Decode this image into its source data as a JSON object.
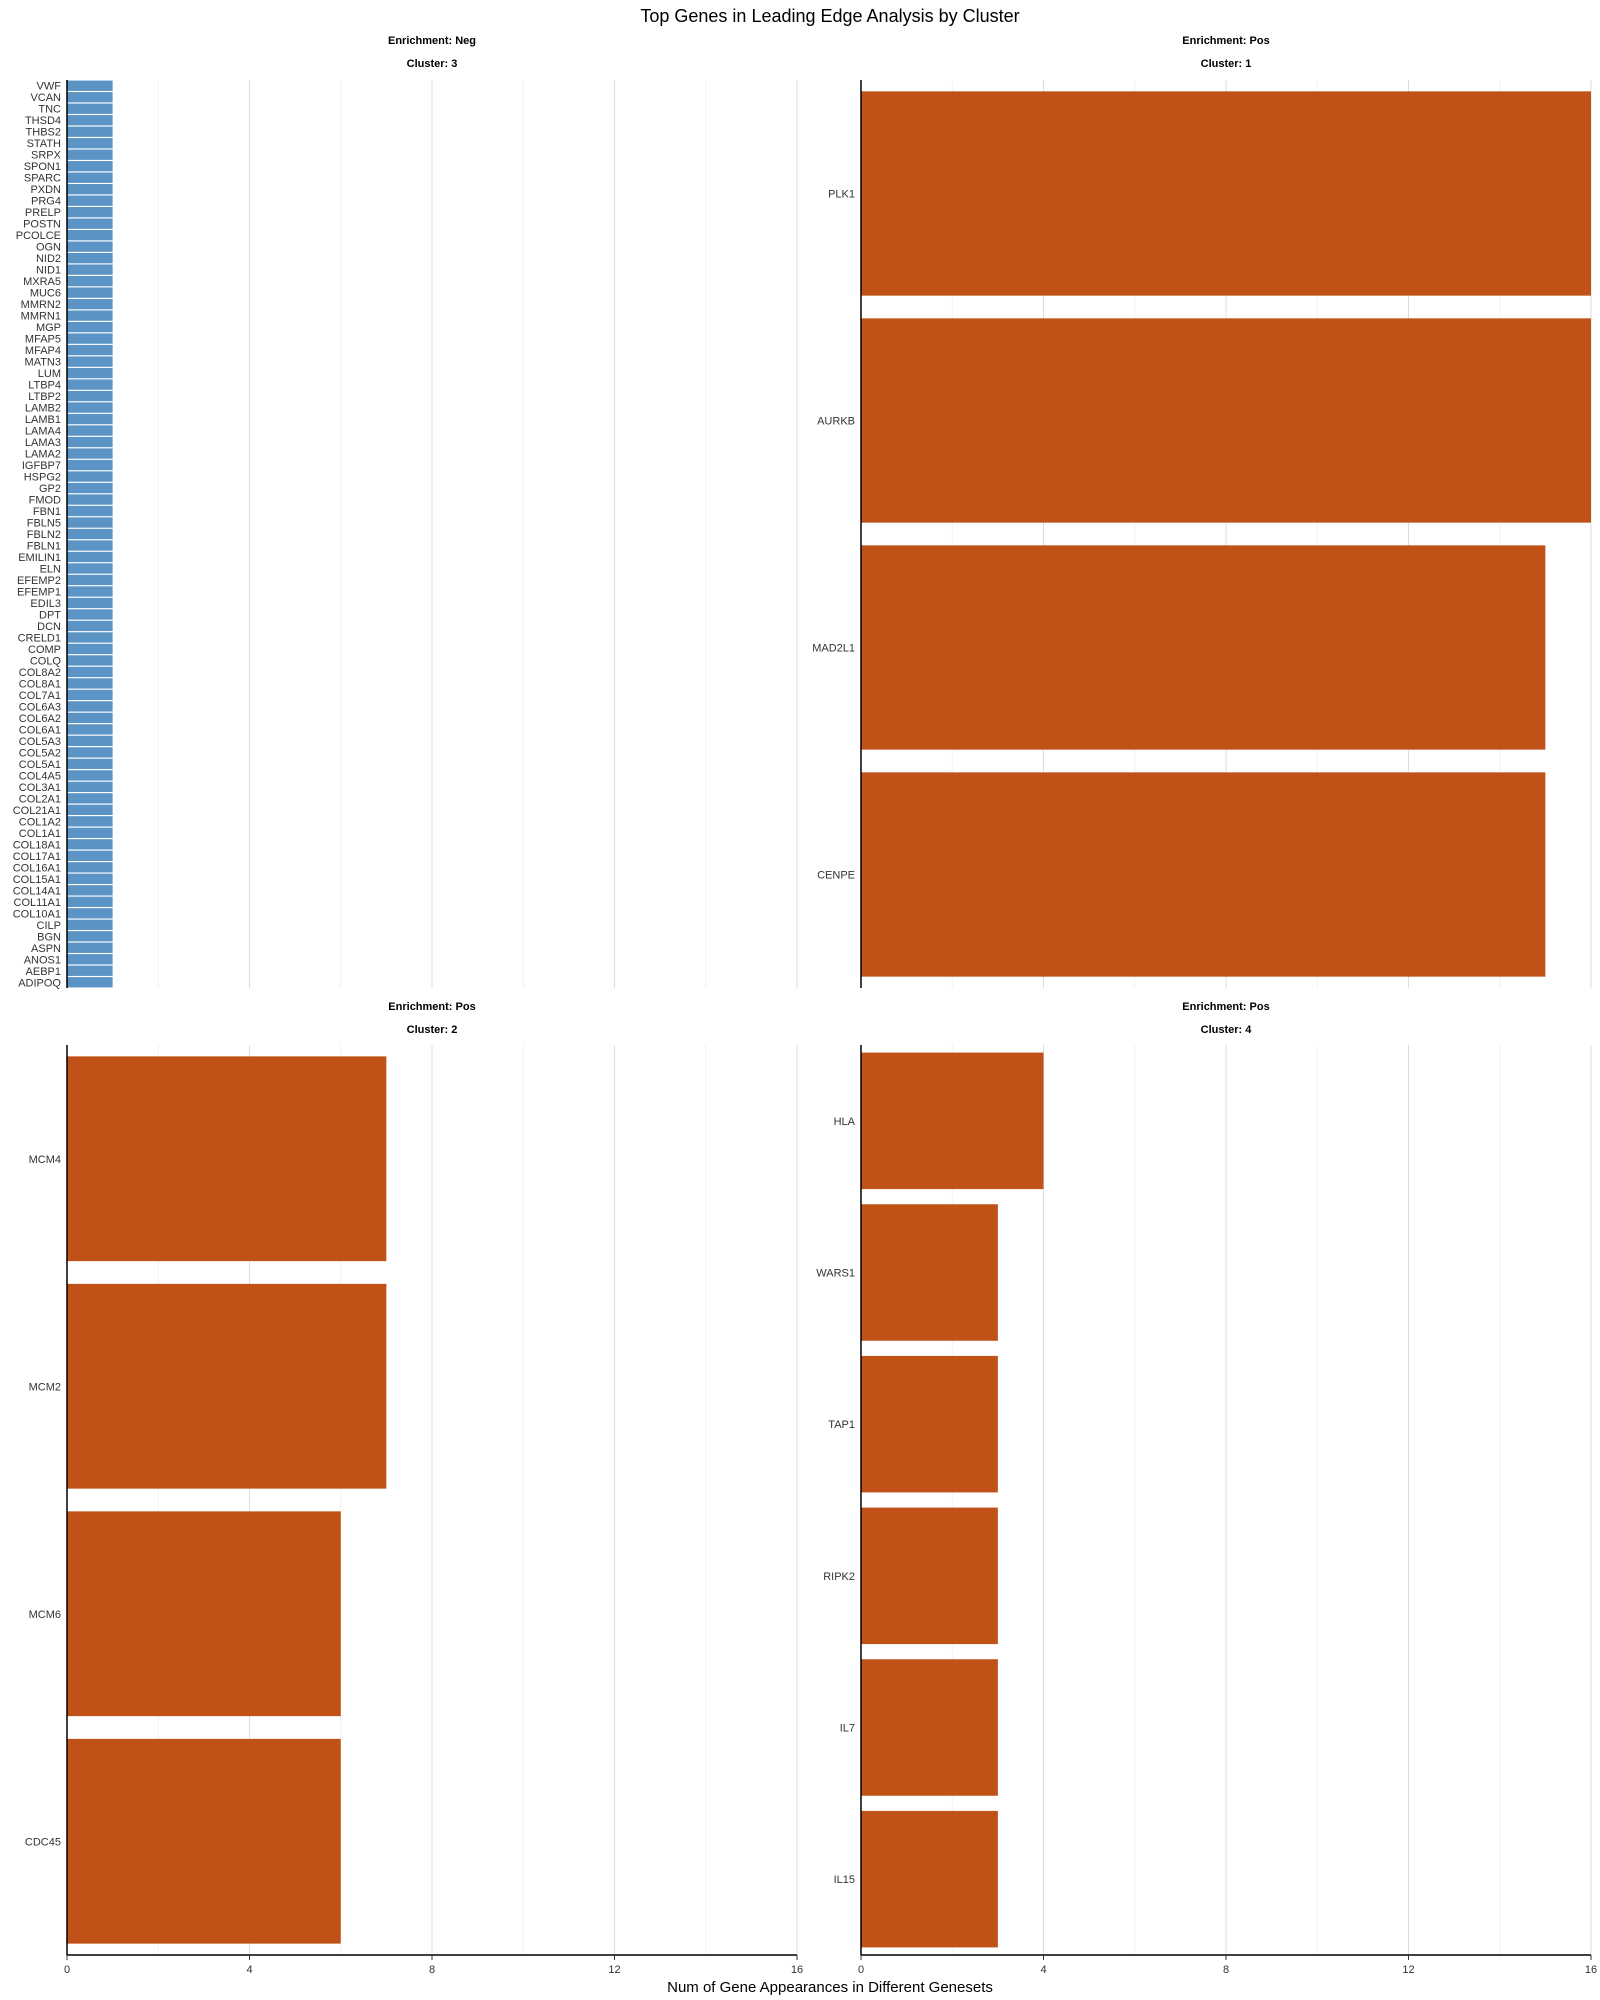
{
  "chart_data": {
    "type": "bar",
    "orientation": "horizontal",
    "title": "Top Genes in Leading Edge Analysis by Cluster",
    "xlabel": "Num of Gene Appearances in Different Genesets",
    "ylabel": "",
    "xlim": [
      0,
      16
    ],
    "x_ticks": [
      "0",
      "4",
      "8",
      "12",
      "16"
    ],
    "grid": "vertical-major-and-minor",
    "colors": {
      "Neg": "#5b94c4",
      "Pos": "#c05217"
    },
    "panels": [
      {
        "enrichment_label": "Enrichment: Neg",
        "cluster_label": "Cluster: 3",
        "enrichment": "Neg",
        "categories": [
          "VWF",
          "VCAN",
          "TNC",
          "THSD4",
          "THBS2",
          "STATH",
          "SRPX",
          "SPON1",
          "SPARC",
          "PXDN",
          "PRG4",
          "PRELP",
          "POSTN",
          "PCOLCE",
          "OGN",
          "NID2",
          "NID1",
          "MXRA5",
          "MUC6",
          "MMRN2",
          "MMRN1",
          "MGP",
          "MFAP5",
          "MFAP4",
          "MATN3",
          "LUM",
          "LTBP4",
          "LTBP2",
          "LAMB2",
          "LAMB1",
          "LAMA4",
          "LAMA3",
          "LAMA2",
          "IGFBP7",
          "HSPG2",
          "GP2",
          "FMOD",
          "FBN1",
          "FBLN5",
          "FBLN2",
          "FBLN1",
          "EMILIN1",
          "ELN",
          "EFEMP2",
          "EFEMP1",
          "EDIL3",
          "DPT",
          "DCN",
          "CRELD1",
          "COMP",
          "COLQ",
          "COL8A2",
          "COL8A1",
          "COL7A1",
          "COL6A3",
          "COL6A2",
          "COL6A1",
          "COL5A3",
          "COL5A2",
          "COL5A1",
          "COL4A5",
          "COL3A1",
          "COL2A1",
          "COL21A1",
          "COL1A2",
          "COL1A1",
          "COL18A1",
          "COL17A1",
          "COL16A1",
          "COL15A1",
          "COL14A1",
          "COL11A1",
          "COL10A1",
          "CILP",
          "BGN",
          "ASPN",
          "ANOS1",
          "AEBP1",
          "ADIPOQ"
        ],
        "values": [
          1,
          1,
          1,
          1,
          1,
          1,
          1,
          1,
          1,
          1,
          1,
          1,
          1,
          1,
          1,
          1,
          1,
          1,
          1,
          1,
          1,
          1,
          1,
          1,
          1,
          1,
          1,
          1,
          1,
          1,
          1,
          1,
          1,
          1,
          1,
          1,
          1,
          1,
          1,
          1,
          1,
          1,
          1,
          1,
          1,
          1,
          1,
          1,
          1,
          1,
          1,
          1,
          1,
          1,
          1,
          1,
          1,
          1,
          1,
          1,
          1,
          1,
          1,
          1,
          1,
          1,
          1,
          1,
          1,
          1,
          1,
          1,
          1,
          1,
          1,
          1,
          1,
          1,
          1
        ]
      },
      {
        "enrichment_label": "Enrichment: Pos",
        "cluster_label": "Cluster: 1",
        "enrichment": "Pos",
        "categories": [
          "PLK1",
          "AURKB",
          "MAD2L1",
          "CENPE"
        ],
        "values": [
          16,
          16,
          15,
          15
        ]
      },
      {
        "enrichment_label": "Enrichment: Pos",
        "cluster_label": "Cluster: 2",
        "enrichment": "Pos",
        "categories": [
          "MCM4",
          "MCM2",
          "MCM6",
          "CDC45"
        ],
        "values": [
          7,
          7,
          6,
          6
        ]
      },
      {
        "enrichment_label": "Enrichment: Pos",
        "cluster_label": "Cluster: 4",
        "enrichment": "Pos",
        "categories": [
          "HLA",
          "WARS1",
          "TAP1",
          "RIPK2",
          "IL7",
          "IL15"
        ],
        "values": [
          4,
          3,
          3,
          3,
          3,
          3
        ]
      }
    ]
  }
}
